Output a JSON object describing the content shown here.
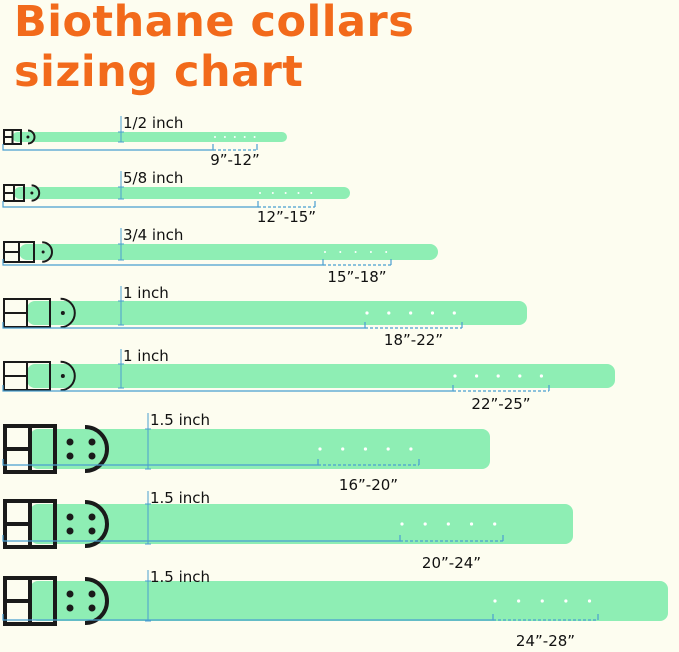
{
  "title": {
    "line1": "Biothane collars",
    "line2": "sizing chart"
  },
  "colors": {
    "title": "#f26a1b",
    "strap": "#8eeeb4",
    "measure_line": "#4a9fd0",
    "hardware": "#1a1a1a",
    "background": "#fdfdf0"
  },
  "collars": [
    {
      "width_label": "1/2 inch",
      "range_label": "9”-12”"
    },
    {
      "width_label": "5/8 inch",
      "range_label": "12”-15”"
    },
    {
      "width_label": "3/4 inch",
      "range_label": "15”-18”"
    },
    {
      "width_label": "1 inch",
      "range_label": "18”-22”"
    },
    {
      "width_label": "1 inch",
      "range_label": "22”-25”"
    },
    {
      "width_label": "1.5 inch",
      "range_label": "16”-20”"
    },
    {
      "width_label": "1.5 inch",
      "range_label": "20”-24”"
    },
    {
      "width_label": "1.5 inch",
      "range_label": "24”-28”"
    }
  ]
}
